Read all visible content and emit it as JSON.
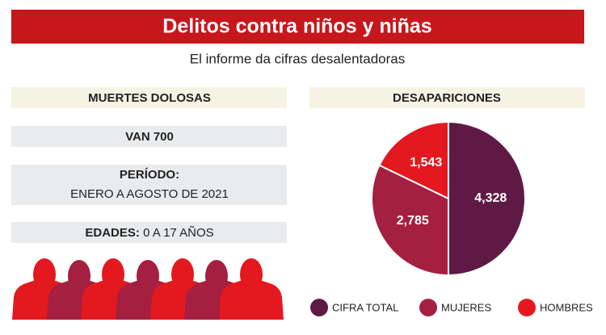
{
  "header": {
    "title": "Delitos contra niños y niñas",
    "subtitle": "El informe da cifras desalentadoras"
  },
  "left": {
    "heading": "MUERTES DOLOSAS",
    "count": "VAN 700",
    "period_label": "PERÍODO:",
    "period": "ENERO A AGOSTO DE 2021",
    "ages_label": "EDADES:",
    "ages": "0 A 17 AÑOS"
  },
  "chart_data": {
    "type": "pie",
    "title": "DESAPARICIONES",
    "categories": [
      "CIFRA TOTAL",
      "MUJERES",
      "HOMBRES"
    ],
    "values": [
      4328,
      2785,
      1543
    ],
    "value_labels": [
      "4,328",
      "2,785",
      "1,543"
    ],
    "colors": [
      "#5e1a45",
      "#a51f40",
      "#e3191f"
    ]
  }
}
